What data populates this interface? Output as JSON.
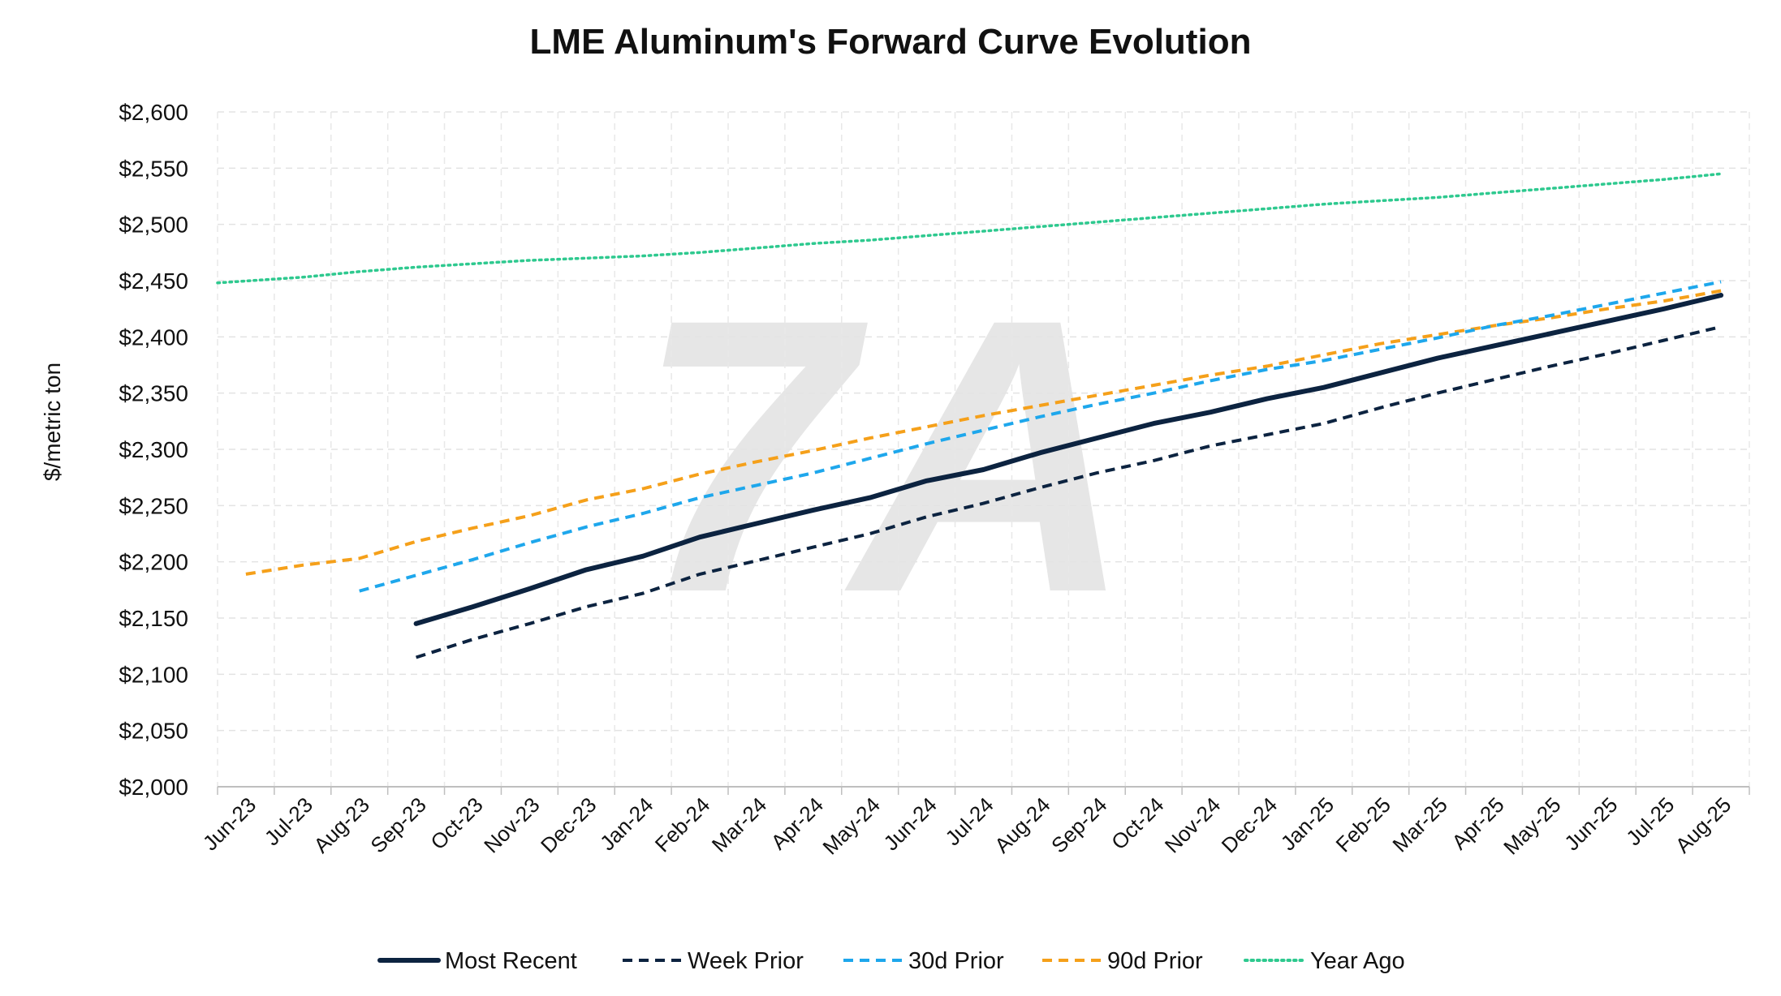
{
  "chart_data": {
    "type": "line",
    "title": "LME Aluminum's Forward Curve Evolution",
    "xlabel": "",
    "ylabel": "$/metric ton",
    "ylim": [
      2000,
      2600
    ],
    "yticks": [
      "$2,000",
      "$2,050",
      "$2,100",
      "$2,150",
      "$2,200",
      "$2,250",
      "$2,300",
      "$2,350",
      "$2,400",
      "$2,450",
      "$2,500",
      "$2,550",
      "$2,600"
    ],
    "ytick_values": [
      2000,
      2050,
      2100,
      2150,
      2200,
      2250,
      2300,
      2350,
      2400,
      2450,
      2500,
      2550,
      2600
    ],
    "categories": [
      "Jun-23",
      "Jul-23",
      "Aug-23",
      "Sep-23",
      "Oct-23",
      "Nov-23",
      "Dec-23",
      "Jan-24",
      "Feb-24",
      "Mar-24",
      "Apr-24",
      "May-24",
      "Jun-24",
      "Jul-24",
      "Aug-24",
      "Sep-24",
      "Oct-24",
      "Nov-24",
      "Dec-24",
      "Jan-25",
      "Feb-25",
      "Mar-25",
      "Apr-25",
      "May-25",
      "Jun-25",
      "Jul-25",
      "Aug-25"
    ],
    "grid": true,
    "legend_position": "bottom",
    "watermark": "7A",
    "series": [
      {
        "name": "Most Recent",
        "color": "#0c2340",
        "style": "solid",
        "points": [
          [
            3.5,
            2145
          ],
          [
            4.5,
            2160
          ],
          [
            5.5,
            2176
          ],
          [
            6.5,
            2193
          ],
          [
            7.5,
            2205
          ],
          [
            8.5,
            2222
          ],
          [
            9.5,
            2234
          ],
          [
            10.5,
            2246
          ],
          [
            11.5,
            2257
          ],
          [
            12.5,
            2272
          ],
          [
            13.5,
            2282
          ],
          [
            14.5,
            2297
          ],
          [
            15.5,
            2310
          ],
          [
            16.5,
            2323
          ],
          [
            17.5,
            2333
          ],
          [
            18.5,
            2345
          ],
          [
            19.5,
            2355
          ],
          [
            20.5,
            2368
          ],
          [
            21.5,
            2381
          ],
          [
            22.5,
            2392
          ],
          [
            23.5,
            2403
          ],
          [
            24.5,
            2414
          ],
          [
            25.5,
            2425
          ],
          [
            26.5,
            2437
          ]
        ]
      },
      {
        "name": "Week Prior",
        "color": "#0c2340",
        "style": "dashed",
        "points": [
          [
            3.5,
            2115
          ],
          [
            4.5,
            2131
          ],
          [
            5.5,
            2145
          ],
          [
            6.5,
            2160
          ],
          [
            7.5,
            2172
          ],
          [
            8.5,
            2189
          ],
          [
            9.5,
            2201
          ],
          [
            10.5,
            2213
          ],
          [
            11.5,
            2225
          ],
          [
            12.5,
            2240
          ],
          [
            13.5,
            2252
          ],
          [
            14.5,
            2266
          ],
          [
            15.5,
            2279
          ],
          [
            16.5,
            2290
          ],
          [
            17.5,
            2303
          ],
          [
            18.5,
            2313
          ],
          [
            19.5,
            2323
          ],
          [
            20.5,
            2337
          ],
          [
            21.5,
            2350
          ],
          [
            22.5,
            2362
          ],
          [
            23.5,
            2374
          ],
          [
            24.5,
            2385
          ],
          [
            25.5,
            2397
          ],
          [
            26.5,
            2409
          ]
        ]
      },
      {
        "name": "30d Prior",
        "color": "#1ea7ec",
        "style": "dashed",
        "points": [
          [
            2.5,
            2174
          ],
          [
            3.5,
            2188
          ],
          [
            4.5,
            2202
          ],
          [
            5.5,
            2217
          ],
          [
            6.5,
            2231
          ],
          [
            7.5,
            2243
          ],
          [
            8.5,
            2257
          ],
          [
            9.5,
            2268
          ],
          [
            10.5,
            2279
          ],
          [
            11.5,
            2292
          ],
          [
            12.5,
            2305
          ],
          [
            13.5,
            2317
          ],
          [
            14.5,
            2329
          ],
          [
            15.5,
            2340
          ],
          [
            16.5,
            2350
          ],
          [
            17.5,
            2361
          ],
          [
            18.5,
            2371
          ],
          [
            19.5,
            2379
          ],
          [
            20.5,
            2389
          ],
          [
            21.5,
            2399
          ],
          [
            22.5,
            2410
          ],
          [
            23.5,
            2419
          ],
          [
            24.5,
            2429
          ],
          [
            25.5,
            2439
          ],
          [
            26.5,
            2449
          ]
        ]
      },
      {
        "name": "90d Prior",
        "color": "#f5a01a",
        "style": "dashed",
        "points": [
          [
            0.5,
            2189
          ],
          [
            1.5,
            2197
          ],
          [
            2.5,
            2203
          ],
          [
            3.5,
            2218
          ],
          [
            4.5,
            2230
          ],
          [
            5.5,
            2241
          ],
          [
            6.5,
            2255
          ],
          [
            7.5,
            2265
          ],
          [
            8.5,
            2278
          ],
          [
            9.5,
            2289
          ],
          [
            10.5,
            2299
          ],
          [
            11.5,
            2310
          ],
          [
            12.5,
            2320
          ],
          [
            13.5,
            2330
          ],
          [
            14.5,
            2339
          ],
          [
            15.5,
            2348
          ],
          [
            16.5,
            2357
          ],
          [
            17.5,
            2366
          ],
          [
            18.5,
            2374
          ],
          [
            19.5,
            2384
          ],
          [
            20.5,
            2394
          ],
          [
            21.5,
            2402
          ],
          [
            22.5,
            2410
          ],
          [
            23.5,
            2417
          ],
          [
            24.5,
            2425
          ],
          [
            25.5,
            2432
          ],
          [
            26.5,
            2441
          ]
        ]
      },
      {
        "name": "Year Ago",
        "color": "#2ec98f",
        "style": "dotted",
        "points": [
          [
            0,
            2448
          ],
          [
            1.5,
            2453
          ],
          [
            2.5,
            2458
          ],
          [
            3.5,
            2462
          ],
          [
            4.5,
            2465
          ],
          [
            5.5,
            2468
          ],
          [
            6.5,
            2470
          ],
          [
            7.5,
            2472
          ],
          [
            8.5,
            2475
          ],
          [
            9.5,
            2479
          ],
          [
            10.5,
            2483
          ],
          [
            11.5,
            2486
          ],
          [
            12.5,
            2490
          ],
          [
            13.5,
            2494
          ],
          [
            14.5,
            2498
          ],
          [
            15.5,
            2502
          ],
          [
            16.5,
            2506
          ],
          [
            17.5,
            2510
          ],
          [
            18.5,
            2514
          ],
          [
            19.5,
            2518
          ],
          [
            20.5,
            2521
          ],
          [
            21.5,
            2524
          ],
          [
            22.5,
            2528
          ],
          [
            23.5,
            2532
          ],
          [
            24.5,
            2536
          ],
          [
            25.5,
            2540
          ],
          [
            26.5,
            2545
          ]
        ]
      }
    ]
  }
}
